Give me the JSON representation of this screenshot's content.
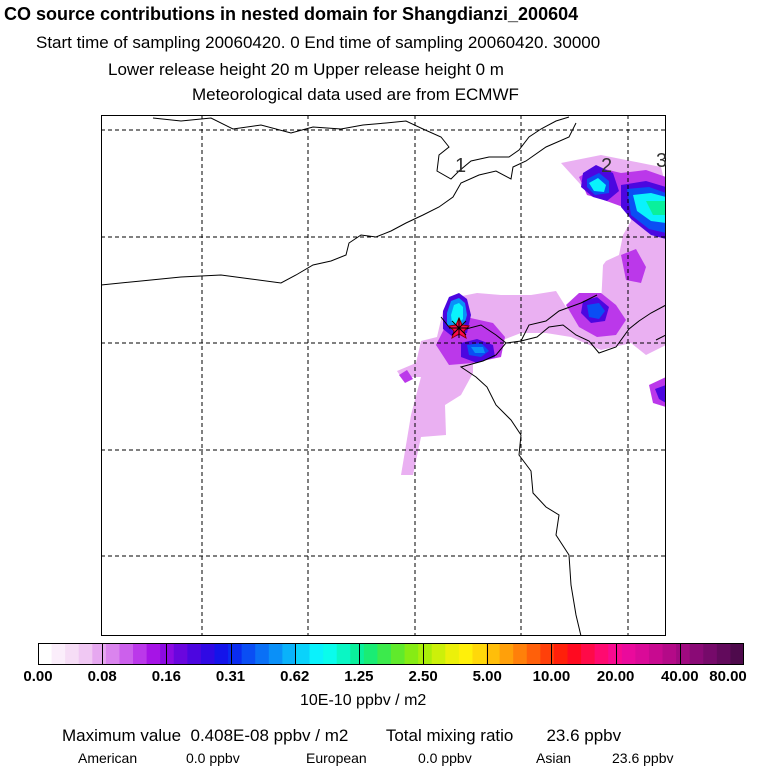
{
  "header": {
    "title": "CO  source contributions in nested domain for Shangdianzi_200604",
    "line2": "Start time of sampling 20060420.     0     End time of sampling 20060420. 30000",
    "line3": "Lower release height   20 m          Upper release height    0 m",
    "line4": "Meteorological data used are from ECMWF"
  },
  "map": {
    "grid_labels": [
      "1",
      "2",
      "3"
    ],
    "colors": {
      "coast": "#000000",
      "grid": "#000000",
      "receptor": "#ff0000"
    },
    "receptor_marker": "star-icon"
  },
  "legend": {
    "ticks": [
      "0.00",
      "0.08",
      "0.16",
      "0.31",
      "0.62",
      "1.25",
      "2.50",
      "5.00",
      "10.00",
      "20.00",
      "40.00",
      "80.00"
    ],
    "units": "10E-10 ppbv / m2",
    "colors": [
      "#ffffff",
      "#fbeefb",
      "#f6ddf6",
      "#f0c8f3",
      "#e6a8f0",
      "#da84ee",
      "#cc60ec",
      "#bb38ea",
      "#a614e6",
      "#8c0ae2",
      "#6a06de",
      "#4c06e0",
      "#3009e4",
      "#1414ea",
      "#0a2cf0",
      "#0a4ef4",
      "#0a70f6",
      "#0a90f8",
      "#0ab2fa",
      "#0ad2fb",
      "#0af2fc",
      "#0afcec",
      "#0af6c4",
      "#0af09c",
      "#1aec74",
      "#3cea4c",
      "#60ea2c",
      "#86ec14",
      "#aaee0a",
      "#ccf00a",
      "#ecf00a",
      "#fff00a",
      "#ffd80a",
      "#ffbe0a",
      "#ffa00a",
      "#ff800a",
      "#ff600a",
      "#ff400a",
      "#ff200a",
      "#ff0a20",
      "#ff0a48",
      "#ff0a70",
      "#f80a90",
      "#ea0a9c",
      "#da0a98",
      "#c80a90",
      "#b40a88",
      "#a00a80",
      "#8a0a76",
      "#760a6a",
      "#620a5c",
      "#4e0a4c"
    ]
  },
  "stats": {
    "max_label": "Maximum value",
    "max_value": "0.408E-08 ppbv / m2",
    "total_label": "Total mixing ratio",
    "total_value": "23.6 ppbv",
    "american_label": "American",
    "american_value": "0.0 ppbv",
    "european_label": "European",
    "european_value": "0.0 ppbv",
    "asian_label": "Asian",
    "asian_value": "23.6 ppbv"
  }
}
